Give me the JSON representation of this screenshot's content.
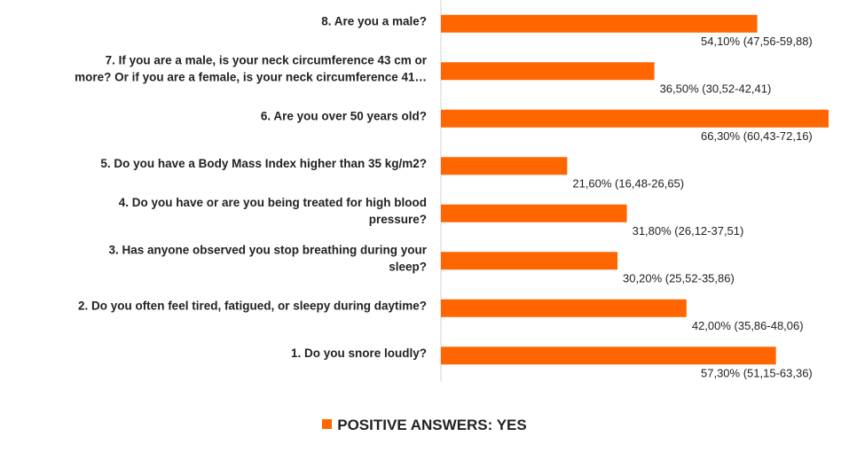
{
  "chart_data": {
    "type": "bar",
    "orientation": "horizontal",
    "series_color": "#ff6600",
    "legend_position": "bottom",
    "legend": "POSITIVE ANSWERS: YES",
    "xlim": [
      0,
      70
    ],
    "grid": false,
    "categories": [
      [
        "8. Are you a male?"
      ],
      [
        "7. If you are a male, is your neck circumference 43 cm or",
        "more? Or if you are a female, is your neck circumference 41…"
      ],
      [
        "6. Are you over 50 years old?"
      ],
      [
        "5. Do you have a Body Mass Index higher than 35 kg/m2?"
      ],
      [
        "4. Do you have or are you being treated for high blood",
        "pressure?"
      ],
      [
        "3. Has anyone observed you stop breathing during your",
        "sleep?"
      ],
      [
        "2. Do you often feel tired, fatigued, or sleepy during daytime?"
      ],
      [
        "1. Do you snore loudly?"
      ]
    ],
    "values": [
      54.1,
      36.5,
      66.3,
      21.6,
      31.8,
      30.2,
      42.0,
      57.3
    ],
    "data_labels": [
      "54,10% (47,56-59,88)",
      "36,50% (30,52-42,41)",
      "66,30% (60,43-72,16)",
      "21,60% (16,48-26,65)",
      "31,80% (26,12-37,51)",
      "30,20% (25,52-35,86)",
      "42,00% (35,86-48,06)",
      "57,30% (51,15-63,36)"
    ]
  }
}
